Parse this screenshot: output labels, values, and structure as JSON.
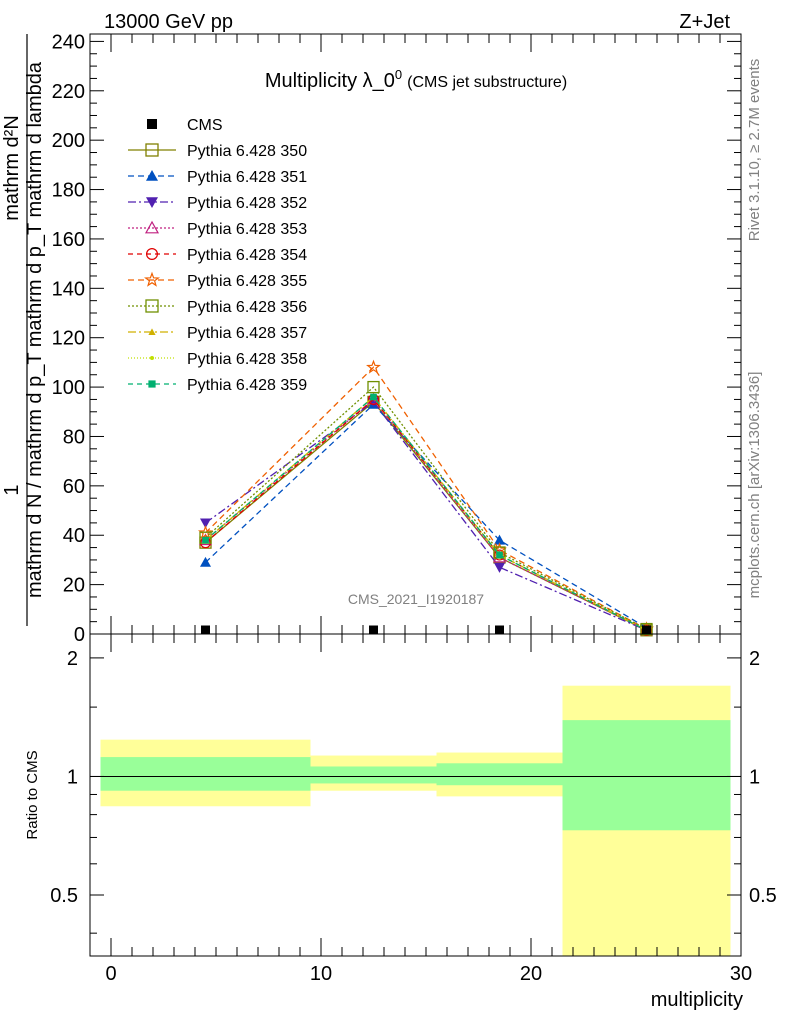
{
  "header": {
    "left": "13000 GeV pp",
    "right": "Z+Jet"
  },
  "side": {
    "rivet": "Rivet 3.1.10, ≥ 2.7M events",
    "mcplots": "mcplots.cern.ch [arXiv:1306.3436]"
  },
  "analysis_id": "CMS_2021_I1920187",
  "colors": {
    "band_inner": "#99ff99",
    "band_outer": "#ffff99",
    "cms": "#000000"
  },
  "chart_data": [
    {
      "type": "line",
      "title_main": "Multiplicity λ_0",
      "title_sup": "0",
      "title_suffix": "(CMS jet substructure)",
      "ylabel_lines": [
        "1",
        "mathrm d N / mathrm d p_T mathrm d p_T mathrm d lambda",
        "mathrm d²N"
      ],
      "xlim": [
        -1,
        30
      ],
      "ylim": [
        0,
        243
      ],
      "yticks": [
        0,
        20,
        40,
        60,
        80,
        100,
        120,
        140,
        160,
        180,
        200,
        220,
        240
      ],
      "x": [
        4.5,
        12.5,
        18.5,
        25.5
      ],
      "cms": {
        "name": "CMS",
        "values": [
          0.8,
          0.8,
          0.5,
          0.0
        ]
      },
      "series": [
        {
          "name": "Pythia 6.428 350",
          "color": "#808000",
          "marker": "square-open",
          "dash": "",
          "values": [
            37,
            94,
            31,
            1.5
          ]
        },
        {
          "name": "Pythia 6.428 351",
          "color": "#0050c0",
          "marker": "triangle-up",
          "dash": "6,4",
          "values": [
            29,
            93,
            38,
            2.5
          ]
        },
        {
          "name": "Pythia 6.428 352",
          "color": "#5020b0",
          "marker": "triangle-down",
          "dash": "8,3,2,3",
          "values": [
            45,
            94,
            27,
            1.5
          ]
        },
        {
          "name": "Pythia 6.428 353",
          "color": "#c02080",
          "marker": "triangle-open",
          "dash": "2,2",
          "values": [
            38,
            95,
            31,
            1.5
          ]
        },
        {
          "name": "Pythia 6.428 354",
          "color": "#e00000",
          "marker": "circle-open",
          "dash": "5,4",
          "values": [
            37,
            95,
            32,
            1.5
          ]
        },
        {
          "name": "Pythia 6.428 355",
          "color": "#f06000",
          "marker": "star-open",
          "dash": "6,4",
          "values": [
            41,
            108,
            34,
            2
          ]
        },
        {
          "name": "Pythia 6.428 356",
          "color": "#709000",
          "marker": "square-open",
          "dash": "2,2",
          "values": [
            39,
            100,
            33,
            2
          ]
        },
        {
          "name": "Pythia 6.428 357",
          "color": "#d0b000",
          "marker": "triangle-small",
          "dash": "8,3,2,3",
          "values": [
            38,
            96,
            32,
            1.5
          ]
        },
        {
          "name": "Pythia 6.428 358",
          "color": "#c0e000",
          "marker": "dot",
          "dash": "1,2",
          "values": [
            38,
            96,
            32,
            1.5
          ]
        },
        {
          "name": "Pythia 6.428 359",
          "color": "#00b070",
          "marker": "square-filled",
          "dash": "5,4",
          "values": [
            38,
            96,
            32,
            1.5
          ]
        }
      ]
    },
    {
      "type": "area",
      "ylabel": "Ratio to CMS",
      "xlabel": "multiplicity",
      "ylim_log": [
        0.35,
        2.3
      ],
      "yticks": [
        0.5,
        1,
        2
      ],
      "xticks": [
        0,
        10,
        20,
        30
      ],
      "bins": [
        {
          "lo": -0.5,
          "hi": 9.5,
          "inner": [
            0.92,
            1.12
          ],
          "outer": [
            0.84,
            1.24
          ]
        },
        {
          "lo": 9.5,
          "hi": 15.5,
          "inner": [
            0.96,
            1.06
          ],
          "outer": [
            0.92,
            1.13
          ]
        },
        {
          "lo": 15.5,
          "hi": 21.5,
          "inner": [
            0.95,
            1.08
          ],
          "outer": [
            0.89,
            1.15
          ]
        },
        {
          "lo": 21.5,
          "hi": 29.5,
          "inner": [
            0.73,
            1.39
          ],
          "outer": [
            0.35,
            1.7
          ]
        }
      ]
    }
  ]
}
